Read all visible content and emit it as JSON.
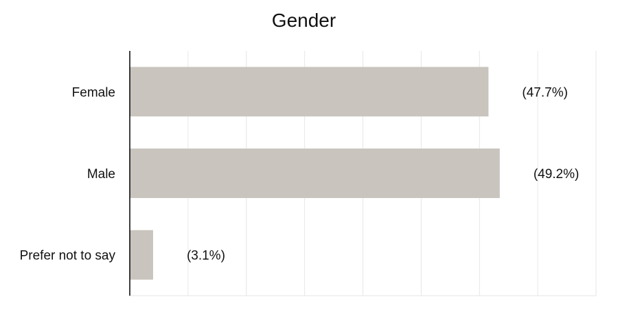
{
  "chart_data": {
    "type": "bar",
    "orientation": "horizontal",
    "title": "Gender",
    "categories": [
      "Female",
      "Male",
      "Prefer not to say"
    ],
    "values": [
      47.7,
      49.2,
      3.1
    ],
    "value_labels": [
      "(47.7%)",
      "(49.2%)",
      "(3.1%)"
    ],
    "xlim": [
      0,
      62
    ],
    "grid": true,
    "bar_color": "#c9c5be",
    "grid_color": "#e6e6e6",
    "axis_color": "#000000"
  }
}
